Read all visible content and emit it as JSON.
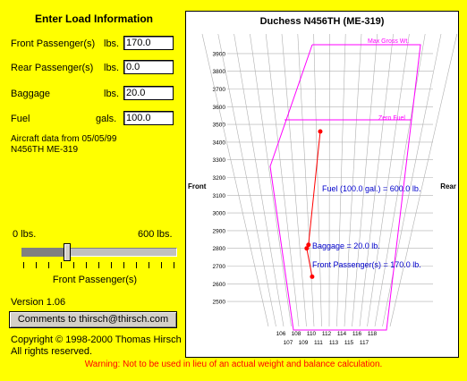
{
  "left_panel": {
    "title": "Enter Load Information",
    "fields": [
      {
        "label": "Front Passenger(s)",
        "unit": "lbs.",
        "value": "170.0"
      },
      {
        "label": "Rear Passenger(s)",
        "unit": "lbs.",
        "value": "0.0"
      },
      {
        "label": "Baggage",
        "unit": "lbs.",
        "value": "20.0"
      },
      {
        "label": "Fuel",
        "unit": "gals.",
        "value": "100.0"
      }
    ],
    "aircraft_date": "Aircraft data from 05/05/99",
    "aircraft_id": "N456TH ME-319",
    "slider": {
      "min_label": "0 lbs.",
      "max_label": "600 lbs.",
      "caption": "Front Passenger(s)",
      "value_fraction": 0.283
    },
    "version": "Version 1.06",
    "comments_button": "Comments to thirsch@thirsch.com",
    "copyright": "Copyright © 1998-2000 Thomas Hirsch",
    "rights": "All rights reserved."
  },
  "warning": "Warning:  Not to be used in lieu of an actual weight and balance calculation.",
  "colors": {
    "background": "#ffff00",
    "envelope": "#ff00ff",
    "cg_path": "#ff0000",
    "annotation": "#0000cc",
    "warning": "#ff0000"
  },
  "chart_data": {
    "type": "line",
    "title": "Duchess N456TH (ME-319)",
    "left_label": "Front",
    "right_label": "Rear",
    "ylim": [
      2450,
      3950
    ],
    "y_ticks": [
      2500,
      2600,
      2700,
      2800,
      2900,
      3000,
      3100,
      3200,
      3300,
      3400,
      3500,
      3600,
      3700,
      3800,
      3900
    ],
    "x_ticks_row1": [
      "106",
      "108",
      "110",
      "112",
      "114",
      "116",
      "118"
    ],
    "x_ticks_row2": [
      "107",
      "109",
      "111",
      "113",
      "115",
      "117"
    ],
    "envelope_labels": {
      "max_gross": "Max Gross Wt.",
      "zero_fuel": "Zero Fuel"
    },
    "annotations": [
      "Fuel (100.0 gal.) = 600.0 lb.",
      "Baggage = 20.0 lb.",
      "Front Passenger(s) = 170.0 lb."
    ],
    "cg_points": [
      {
        "arm": 110.1,
        "weight": 2640
      },
      {
        "arm": 109.7,
        "weight": 2800
      },
      {
        "arm": 109.9,
        "weight": 2820
      },
      {
        "arm": 111.3,
        "weight": 3460
      }
    ]
  }
}
